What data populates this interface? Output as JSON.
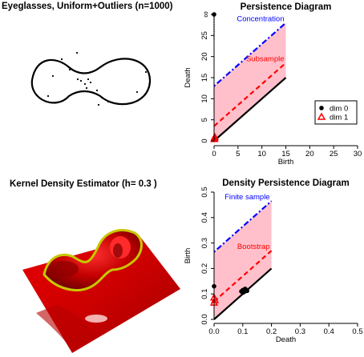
{
  "panels": {
    "eyeglasses": {
      "title": "Eyeglasses, Uniform+Outliers (n=1000)"
    },
    "kde": {
      "title": "Kernel Density Estimator (h= 0.3 )"
    }
  },
  "chart_data": [
    {
      "type": "scatter",
      "title": "Persistence Diagram",
      "xlabel": "Birth",
      "ylabel": "Death",
      "xlim": [
        0,
        30
      ],
      "ylim": [
        0,
        30
      ],
      "x_ticks": [
        0,
        5,
        10,
        15,
        20,
        25,
        30
      ],
      "y_ticks": [
        0,
        5,
        10,
        15,
        20,
        25
      ],
      "y_infinity_label": "∞",
      "legend": {
        "placement": "bottom-right",
        "entries": [
          {
            "label": "dim 0",
            "marker": "filled-circle",
            "color": "#000000"
          },
          {
            "label": "dim 1",
            "marker": "open-triangle",
            "color": "#ff0000"
          }
        ]
      },
      "bands": [
        {
          "name": "Concentration",
          "offset": 13,
          "x_range": [
            0,
            15
          ],
          "color": "#0000ff",
          "dash": "dotdash"
        },
        {
          "name": "Subsample",
          "offset": 3.5,
          "x_range": [
            0,
            15
          ],
          "color": "#ff0000",
          "dash": "dash"
        }
      ],
      "shade": {
        "lower_offset": 0,
        "upper_offset": 13,
        "x_range": [
          0,
          15
        ],
        "color": "#ffc0cb"
      },
      "diagonal": {
        "x_range": [
          0,
          15
        ],
        "color": "#000000"
      },
      "series": [
        {
          "name": "dim 0",
          "points": [
            {
              "x": 0,
              "y": 30,
              "infinite": true
            },
            {
              "x": 0,
              "y": 0.3
            },
            {
              "x": 0,
              "y": 0.5
            },
            {
              "x": 0,
              "y": 0.2
            }
          ]
        },
        {
          "name": "dim 1",
          "points": [
            {
              "x": 0.05,
              "y": 0.4
            },
            {
              "x": 0.1,
              "y": 0.6
            },
            {
              "x": 0.15,
              "y": 0.9
            }
          ]
        }
      ]
    },
    {
      "type": "scatter",
      "title": "Density Persistence Diagram",
      "xlabel": "Death",
      "ylabel": "Birth",
      "xlim": [
        0,
        0.5
      ],
      "ylim": [
        0,
        0.5
      ],
      "x_ticks": [
        0.0,
        0.1,
        0.2,
        0.3,
        0.4,
        0.5
      ],
      "y_ticks": [
        0.0,
        0.1,
        0.2,
        0.3,
        0.4,
        0.5
      ],
      "bands": [
        {
          "name": "Finite sample",
          "offset": 0.265,
          "x_range": [
            0,
            0.2
          ],
          "color": "#0000ff",
          "dash": "dotdash"
        },
        {
          "name": "Bootstrap",
          "offset": 0.07,
          "x_range": [
            0,
            0.2
          ],
          "color": "#ff0000",
          "dash": "dash"
        }
      ],
      "shade": {
        "lower_offset": 0,
        "upper_offset": 0.265,
        "x_range": [
          0,
          0.2
        ],
        "color": "#ffc0cb"
      },
      "diagonal": {
        "x_range": [
          0,
          0.2
        ],
        "color": "#000000"
      },
      "series": [
        {
          "name": "dim 0",
          "points": [
            {
              "x": 0.0,
              "y": 0.13
            },
            {
              "x": 0.095,
              "y": 0.11
            },
            {
              "x": 0.1,
              "y": 0.115
            },
            {
              "x": 0.105,
              "y": 0.108
            },
            {
              "x": 0.11,
              "y": 0.118
            },
            {
              "x": 0.1,
              "y": 0.105
            },
            {
              "x": 0.115,
              "y": 0.112
            },
            {
              "x": 0.108,
              "y": 0.12
            }
          ]
        },
        {
          "name": "dim 1",
          "points": [
            {
              "x": 0.0,
              "y": 0.085
            },
            {
              "x": 0.0,
              "y": 0.065
            },
            {
              "x": 0.003,
              "y": 0.075
            }
          ]
        }
      ]
    }
  ]
}
